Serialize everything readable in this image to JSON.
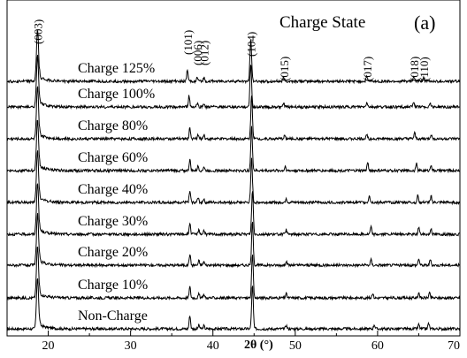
{
  "chart_data": {
    "type": "line",
    "title": "Charge State",
    "panel_label": "(a)",
    "xlabel": "2θ (°)",
    "ylabel": "",
    "xlim": [
      15,
      70
    ],
    "x_ticks": [
      "20",
      "30",
      "40",
      "50",
      "60",
      "70"
    ],
    "y_ticks_visible": false,
    "grid": false,
    "stacked_offset": true,
    "peaks": [
      {
        "label": "(003)",
        "x": 18.7
      },
      {
        "label": "(101)",
        "x": 36.9
      },
      {
        "label": "(006)",
        "x": 38.1
      },
      {
        "label": "(012)",
        "x": 38.9
      },
      {
        "label": "(104)",
        "x": 44.6
      },
      {
        "label": "(015)",
        "x": 48.6
      },
      {
        "label": "(017)",
        "x": 58.7
      },
      {
        "label": "(018)",
        "x": 64.4
      },
      {
        "label": "(110)",
        "x": 65.6
      }
    ],
    "series": [
      {
        "name": "Non-Charge",
        "peaks_x": [
          18.7,
          37.2,
          38.3,
          38.9,
          44.8,
          48.9,
          59.6,
          65.0,
          66.2
        ],
        "heights": [
          4.2,
          1.1,
          0.3,
          0.25,
          3.5,
          0.3,
          0.35,
          0.35,
          0.45
        ]
      },
      {
        "name": "Charge 10%",
        "peaks_x": [
          18.7,
          37.2,
          38.3,
          38.9,
          44.8,
          48.9,
          59.4,
          65.0,
          66.3
        ],
        "heights": [
          4.2,
          0.9,
          0.3,
          0.3,
          3.5,
          0.35,
          0.4,
          0.45,
          0.4
        ]
      },
      {
        "name": "Charge 20%",
        "peaks_x": [
          18.7,
          37.2,
          38.3,
          38.9,
          44.8,
          48.9,
          59.2,
          65.0,
          66.4
        ],
        "heights": [
          4.2,
          0.9,
          0.35,
          0.3,
          3.5,
          0.35,
          0.45,
          0.55,
          0.45
        ]
      },
      {
        "name": "Charge 30%",
        "peaks_x": [
          18.7,
          37.2,
          38.3,
          38.9,
          44.8,
          48.9,
          59.2,
          65.0,
          66.5
        ],
        "heights": [
          4.2,
          0.9,
          0.4,
          0.3,
          3.5,
          0.35,
          0.6,
          0.6,
          0.5
        ]
      },
      {
        "name": "Charge 40%",
        "peaks_x": [
          18.7,
          37.2,
          38.2,
          38.9,
          44.7,
          48.9,
          59.0,
          64.9,
          66.5
        ],
        "heights": [
          4.2,
          0.9,
          0.35,
          0.3,
          3.5,
          0.35,
          0.6,
          0.6,
          0.5
        ]
      },
      {
        "name": "Charge 60%",
        "peaks_x": [
          18.7,
          37.2,
          38.2,
          38.9,
          44.7,
          48.8,
          58.8,
          64.7,
          66.5
        ],
        "heights": [
          4.2,
          0.9,
          0.35,
          0.3,
          3.5,
          0.35,
          0.65,
          0.6,
          0.5
        ]
      },
      {
        "name": "Charge 80%",
        "peaks_x": [
          18.7,
          37.2,
          38.2,
          38.9,
          44.7,
          48.7,
          58.7,
          64.5,
          66.5
        ],
        "heights": [
          4.2,
          0.9,
          0.3,
          0.3,
          3.5,
          0.3,
          0.4,
          0.45,
          0.35
        ]
      },
      {
        "name": "Charge 100%",
        "peaks_x": [
          18.7,
          37.1,
          38.1,
          38.9,
          44.6,
          48.6,
          58.7,
          64.4,
          66.4
        ],
        "heights": [
          4.2,
          0.9,
          0.3,
          0.3,
          3.5,
          0.3,
          0.4,
          0.4,
          0.35
        ]
      },
      {
        "name": "Charge 125%",
        "peaks_x": [
          18.7,
          36.9,
          38.1,
          38.9,
          44.6,
          48.6,
          58.7,
          64.4,
          65.6
        ],
        "heights": [
          4.2,
          0.9,
          0.3,
          0.3,
          3.5,
          0.3,
          0.4,
          0.4,
          0.35
        ]
      }
    ]
  }
}
